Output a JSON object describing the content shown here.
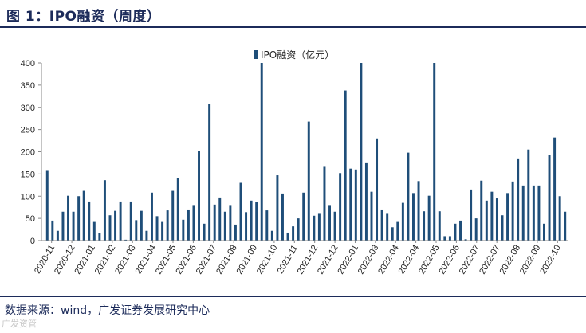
{
  "figure": {
    "title": "图 1：IPO融资（周度）",
    "source": "数据来源：wind，广发证券发展研究中心",
    "watermark": "广发资管"
  },
  "chart_data": {
    "type": "bar",
    "title": "",
    "xlabel": "",
    "ylabel": "",
    "ylim": [
      0,
      400
    ],
    "yticks": [
      0,
      50,
      100,
      150,
      200,
      250,
      300,
      350,
      400
    ],
    "grid": false,
    "legend": "top-center",
    "color": "#1f4e79",
    "month_labels": [
      "2020-11",
      "2020-12",
      "2021-01",
      "2021-02",
      "2021-03",
      "2021-04",
      "2021-05",
      "2021-06",
      "2021-07",
      "2021-08",
      "2021-09",
      "2021-10",
      "2021-11",
      "2021-12",
      "2021-12",
      "2022-01",
      "2022-03",
      "2022-04",
      "2022-04",
      "2022-05",
      "2022-06",
      "2022-07",
      "2022-07",
      "2022-08",
      "2022-09",
      "2022-10"
    ],
    "series": [
      {
        "name": "IPO融资（亿元）",
        "values": [
          157,
          45,
          22,
          65,
          101,
          65,
          100,
          112,
          88,
          42,
          17,
          136,
          57,
          67,
          88,
          2,
          88,
          46,
          67,
          22,
          108,
          55,
          42,
          68,
          112,
          140,
          47,
          70,
          80,
          202,
          38,
          307,
          81,
          97,
          65,
          80,
          36,
          130,
          64,
          90,
          87,
          400,
          68,
          22,
          147,
          106,
          18,
          32,
          50,
          108,
          268,
          56,
          62,
          166,
          80,
          65,
          152,
          338,
          162,
          160,
          400,
          176,
          110,
          230,
          70,
          62,
          30,
          42,
          85,
          198,
          107,
          134,
          66,
          101,
          400,
          66,
          10,
          10,
          38,
          45,
          3,
          115,
          50,
          135,
          90,
          110,
          95,
          57,
          107,
          133,
          185,
          124,
          205,
          124,
          124,
          38,
          192,
          232,
          100,
          65
        ]
      }
    ]
  }
}
